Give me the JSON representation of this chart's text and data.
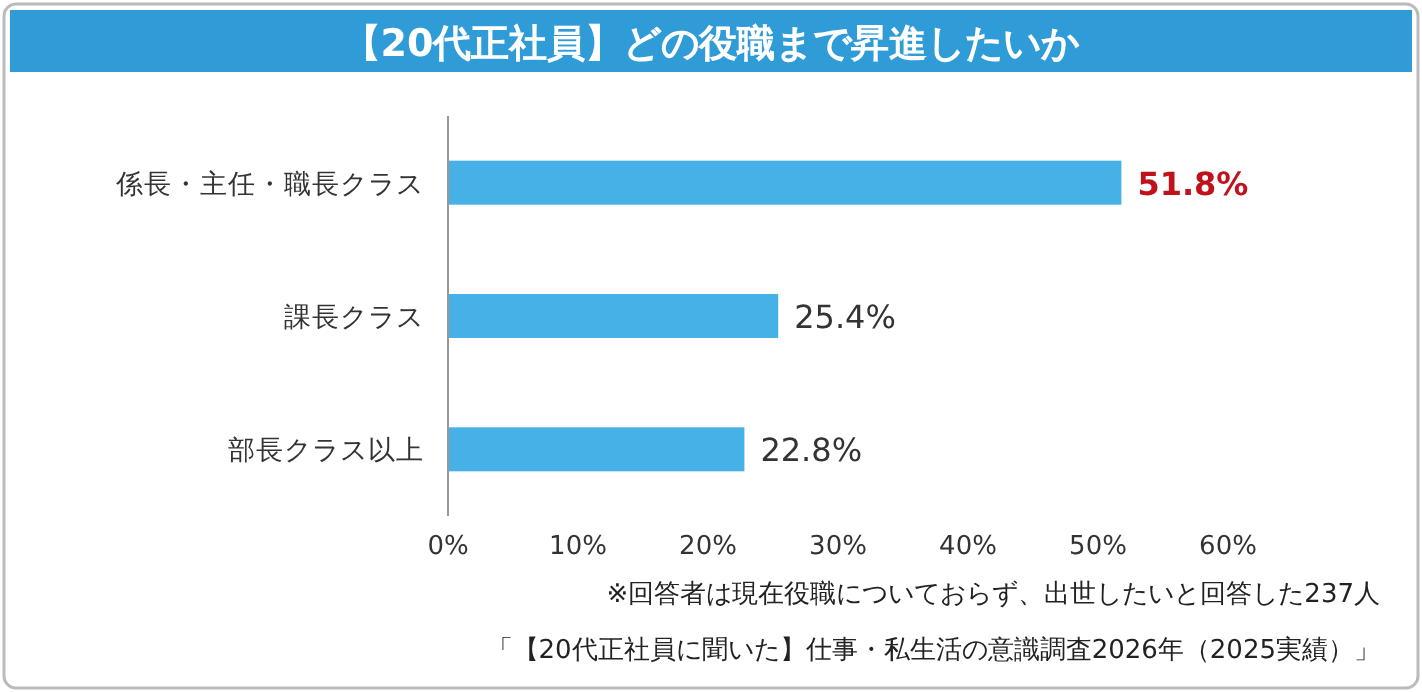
{
  "chart_data": {
    "type": "bar",
    "orientation": "horizontal",
    "title": "【20代正社員】どの役職まで昇進したいか",
    "categories": [
      "係長・主任・職長クラス",
      "課長クラス",
      "部長クラス以上"
    ],
    "values": [
      51.8,
      25.4,
      22.8
    ],
    "value_labels": [
      "51.8%",
      "25.4%",
      "22.8%"
    ],
    "color": "#45b1e6",
    "xlim": [
      0,
      60
    ],
    "xticks": [
      {
        "value": 0,
        "label": "0%"
      },
      {
        "value": 10,
        "label": "10%"
      },
      {
        "value": 20,
        "label": "20%"
      },
      {
        "value": 30,
        "label": "30%"
      },
      {
        "value": 40,
        "label": "40%"
      },
      {
        "value": 50,
        "label": "50%"
      },
      {
        "value": 60,
        "label": "60%"
      }
    ],
    "grid": false,
    "annotations": [
      "※回答者は現在役職についておらず、出世したいと回答した237人",
      "「【20代正社員に聞いた】仕事・私生活の意識調査2026年（2025実績）」"
    ]
  }
}
